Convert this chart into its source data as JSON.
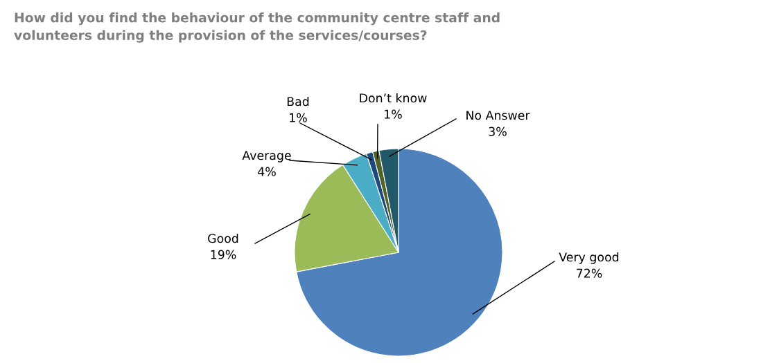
{
  "chart_data": {
    "type": "pie",
    "title": "How did you find the behaviour of the community centre staff and\nvolunteers during the provision of the services/courses?",
    "categories": [
      "Very good",
      "Good",
      "Average",
      "Bad",
      "Don’t know",
      "No Answer"
    ],
    "values": [
      72,
      19,
      4,
      1,
      1,
      3
    ],
    "colors": [
      "#4f81bd",
      "#9bbb59",
      "#4bacc6",
      "#1f497d",
      "#4f6228",
      "#215968"
    ],
    "value_labels": [
      "72%",
      "19%",
      "4%",
      "1%",
      "1%",
      "3%"
    ],
    "legend": false
  }
}
